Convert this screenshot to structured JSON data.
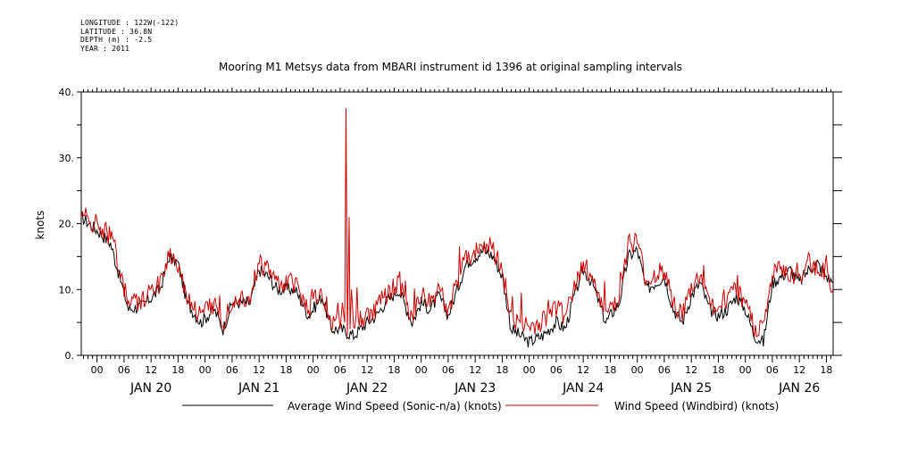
{
  "header": {
    "longitude": "LONGITUDE : 122W(-122)",
    "latitude": "LATITUDE : 36.8N",
    "depth": "DEPTH (m) : -2.5",
    "year": "YEAR : 2011"
  },
  "chart_data": {
    "type": "line",
    "title": "Mooring M1 Metsys data from MBARI instrument id 1396 at original sampling intervals",
    "ylabel": "knots",
    "xlabel": "",
    "ylim": [
      0,
      40
    ],
    "xlim_hours": [
      -3.5,
      163.5
    ],
    "y_ticks": [
      0,
      10,
      20,
      30,
      40
    ],
    "y_tick_labels": [
      "0.",
      "10.",
      "20.",
      "30.",
      "40."
    ],
    "hour_tick_labels": [
      "00",
      "06",
      "12",
      "18",
      "00",
      "06",
      "12",
      "18",
      "00",
      "06",
      "12",
      "18",
      "00",
      "06",
      "12",
      "18",
      "00",
      "06",
      "12",
      "18",
      "00",
      "06",
      "12",
      "18",
      "00",
      "06",
      "12",
      "18"
    ],
    "day_labels": [
      "JAN 20",
      "JAN 21",
      "JAN 22",
      "JAN 23",
      "JAN 24",
      "JAN 25",
      "JAN 26"
    ],
    "legend_position": "bottom",
    "grid": false,
    "series": [
      {
        "name": "Average Wind Speed (Sonic-n/a) (knots)",
        "color": "#000000",
        "x_hours": [
          -3.5,
          0,
          3,
          5,
          7,
          10,
          14,
          16,
          18,
          20,
          23,
          26,
          28,
          30,
          34,
          36,
          38,
          40,
          44,
          47,
          50,
          52,
          54,
          57,
          60,
          62,
          64,
          67,
          70,
          72,
          74,
          76,
          78,
          80,
          82,
          84,
          86,
          88,
          90,
          92,
          94,
          96,
          99,
          102,
          104,
          106,
          108,
          110,
          113,
          116,
          118,
          120,
          122,
          124,
          126,
          128,
          130,
          132,
          134,
          136,
          138,
          140,
          142,
          144,
          146,
          148,
          150,
          152,
          154,
          156,
          158,
          160,
          162,
          163.5
        ],
        "values": [
          21,
          19,
          17,
          12,
          7,
          7.5,
          10,
          15,
          14,
          8,
          5,
          7,
          4,
          8,
          8,
          13,
          12,
          10,
          10,
          6,
          9,
          4,
          4,
          3,
          5,
          6,
          8,
          10,
          5,
          8,
          7,
          9,
          6,
          10,
          14,
          15,
          16,
          15,
          12,
          4,
          3,
          2,
          3,
          5,
          4,
          9,
          13,
          11,
          5,
          8,
          15,
          16,
          10,
          11,
          12,
          7,
          5,
          9,
          11,
          7,
          6,
          7,
          9,
          7,
          3,
          2,
          11,
          12,
          13,
          11,
          13,
          14,
          12,
          11
        ]
      },
      {
        "name": "Wind Speed (Windbird) (knots)",
        "color": "#cc0000",
        "x_hours": [
          -3.5,
          -3,
          -2,
          0,
          3,
          5,
          7,
          10,
          14,
          16,
          18,
          20,
          23,
          26,
          28,
          30,
          34,
          36,
          38,
          40,
          44,
          47,
          50,
          52,
          53.5,
          54,
          54.5,
          55,
          55.3,
          55.6,
          56,
          56.2,
          56.5,
          57,
          60,
          62,
          64,
          67,
          70,
          72,
          74,
          76,
          78,
          80,
          82,
          84,
          86,
          88,
          90,
          92,
          94,
          96,
          99,
          102,
          104,
          106,
          108,
          110,
          113,
          116,
          118,
          120,
          122,
          124,
          126,
          128,
          130,
          132,
          134,
          136,
          138,
          140,
          142,
          144,
          146,
          148,
          150,
          152,
          154,
          156,
          158,
          160,
          162,
          163.5
        ],
        "values": [
          21,
          22.5,
          20,
          20,
          18,
          13,
          8,
          8,
          11,
          15.5,
          14,
          9,
          6,
          8,
          5,
          8.5,
          9,
          14,
          13,
          11,
          11,
          7,
          10,
          5,
          8,
          4,
          8,
          5,
          37.5,
          3,
          21,
          4,
          10,
          5,
          6,
          7,
          9,
          11,
          6,
          9,
          8,
          10,
          7,
          11,
          15,
          16,
          17,
          16,
          13,
          6,
          5,
          4,
          5,
          7,
          6,
          10,
          14,
          12,
          6,
          9,
          17,
          17,
          11,
          12,
          13,
          8,
          6,
          10,
          12,
          8,
          7,
          8,
          10,
          8,
          4,
          4,
          12,
          13,
          12,
          12,
          14,
          13,
          13,
          10
        ]
      }
    ]
  }
}
